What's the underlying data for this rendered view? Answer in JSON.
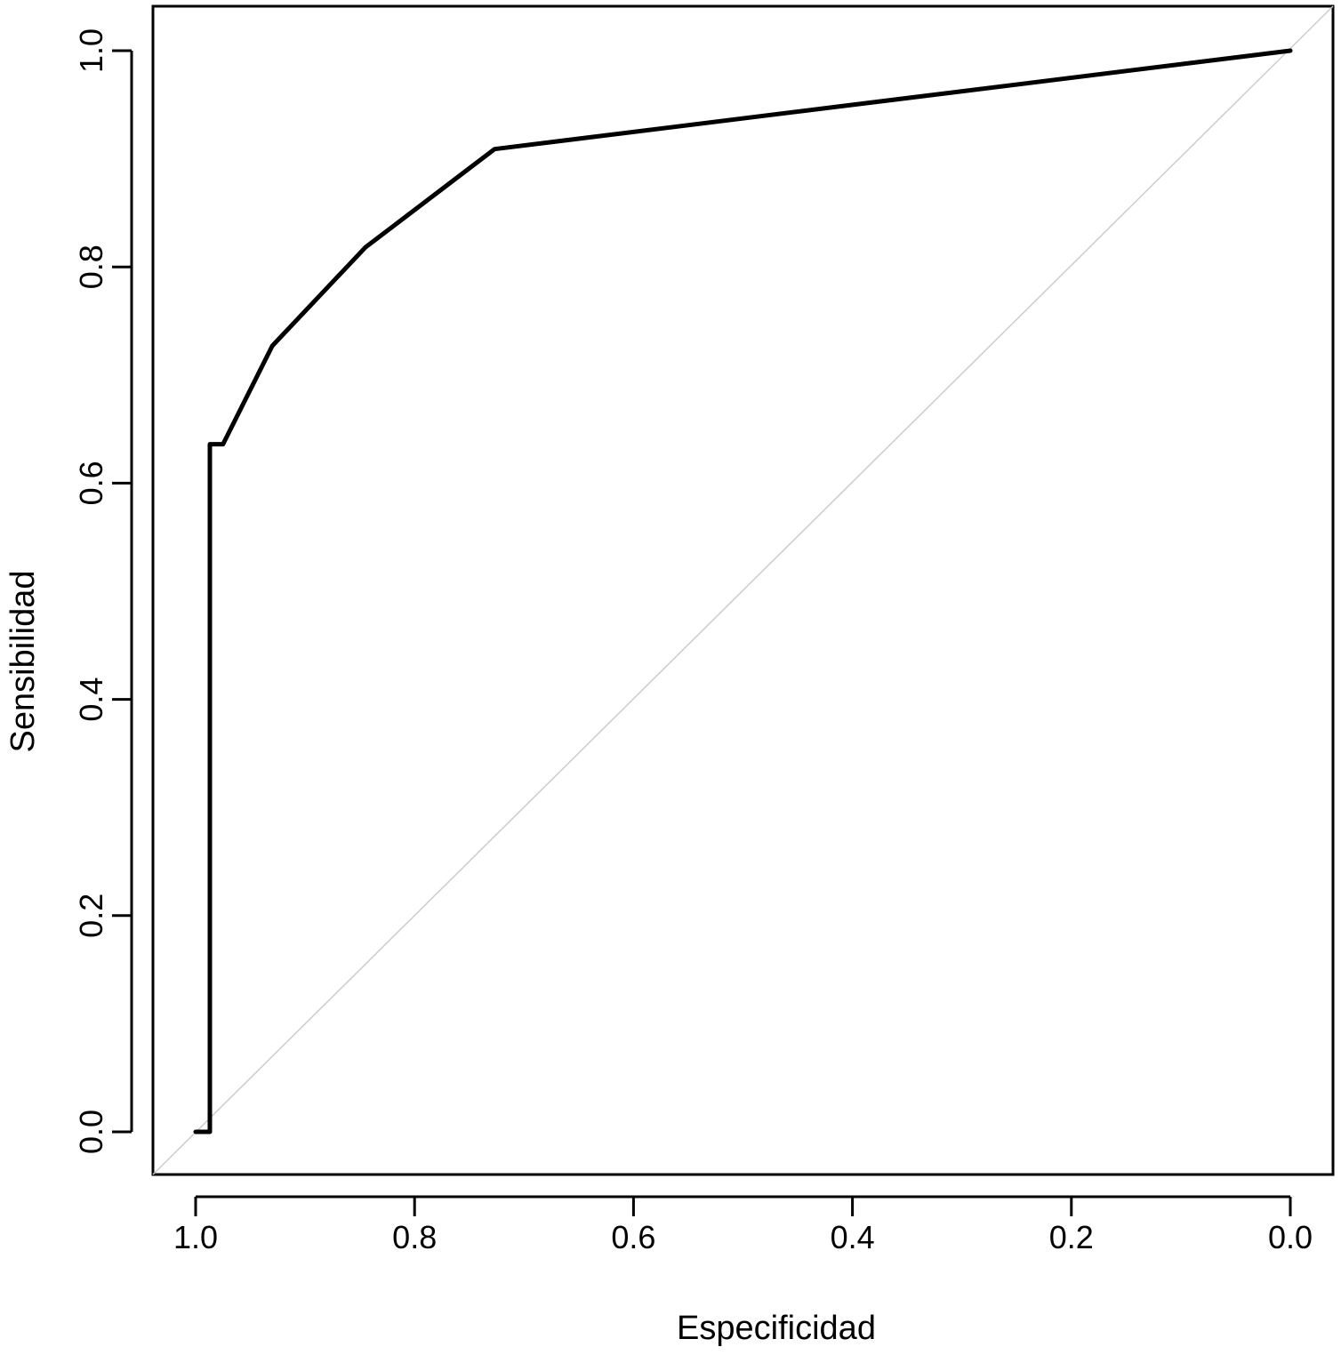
{
  "chart_data": {
    "type": "line",
    "title": "",
    "xlabel": "Especificidad",
    "ylabel": "Sensibilidad",
    "xlim": [
      1.0,
      0.0
    ],
    "ylim": [
      0.0,
      1.0
    ],
    "x_reversed": true,
    "grid": false,
    "x_ticks": [
      1.0,
      0.8,
      0.6,
      0.4,
      0.2,
      0.0
    ],
    "x_tick_labels": [
      "1.0",
      "0.8",
      "0.6",
      "0.4",
      "0.2",
      "0.0"
    ],
    "y_ticks": [
      0.0,
      0.2,
      0.4,
      0.6,
      0.8,
      1.0
    ],
    "y_tick_labels": [
      "0.0",
      "0.2",
      "0.4",
      "0.6",
      "0.8",
      "1.0"
    ],
    "reference_line": {
      "from": [
        1.0,
        0.0
      ],
      "to": [
        0.0,
        1.0
      ],
      "color": "#cccccc"
    },
    "series": [
      {
        "color": "#000000",
        "x": [
          1.0,
          0.987,
          0.987,
          0.975,
          0.93,
          0.845,
          0.727,
          0.0
        ],
        "y": [
          0.0,
          0.0,
          0.636,
          0.636,
          0.727,
          0.818,
          0.909,
          1.0
        ]
      }
    ]
  }
}
